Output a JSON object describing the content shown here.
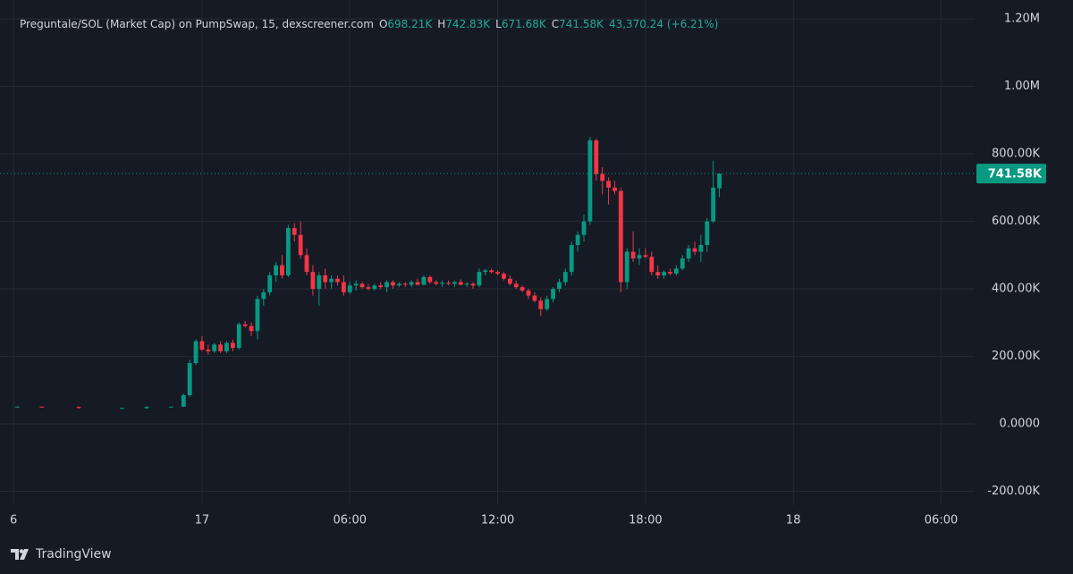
{
  "chart_data": {
    "type": "candlestick",
    "title": "Preguntale/SOL (Market Cap) on PumpSwap, 15, dexscreener.com",
    "ohlc_legend": [
      {
        "key": "O",
        "value": "698.21K"
      },
      {
        "key": "H",
        "value": "742.83K"
      },
      {
        "key": "L",
        "value": "671.68K"
      },
      {
        "key": "C",
        "value": "741.58K"
      }
    ],
    "change": "43,370.24 (+6.21%)",
    "brand": "TradingView",
    "up_color": "#089981",
    "down_color": "#f23645",
    "grid": true,
    "last_price": {
      "value": 741580,
      "label": "741.58K"
    },
    "xlim": [
      15.8,
      55.36
    ],
    "xticks": [
      {
        "value": 16.35,
        "label": "6"
      },
      {
        "value": 24,
        "label": "17"
      },
      {
        "value": 30,
        "label": "06:00"
      },
      {
        "value": 36,
        "label": "12:00"
      },
      {
        "value": 42,
        "label": "18:00"
      },
      {
        "value": 48,
        "label": "18"
      },
      {
        "value": 54,
        "label": "06:00"
      }
    ],
    "ylim": [
      -241000,
      1256000
    ],
    "yticks": [
      {
        "value": 1200000,
        "label": "1.20M"
      },
      {
        "value": 1000000,
        "label": "1.00M"
      },
      {
        "value": 800000,
        "label": "800.00K"
      },
      {
        "value": 600000,
        "label": "600.00K"
      },
      {
        "value": 400000,
        "label": "400.00K"
      },
      {
        "value": 200000,
        "label": "200.00K"
      },
      {
        "value": 0,
        "label": "0.0000"
      },
      {
        "value": -200000,
        "label": "-200.00K"
      }
    ],
    "x": [
      16.5,
      17.5,
      19,
      20.75,
      21.75,
      22.75,
      23.25,
      23.5,
      23.75,
      24,
      24.25,
      24.5,
      24.75,
      25,
      25.25,
      25.5,
      25.75,
      26,
      26.25,
      26.5,
      26.75,
      27,
      27.25,
      27.5,
      27.75,
      28,
      28.25,
      28.5,
      28.75,
      29,
      29.25,
      29.5,
      29.75,
      30,
      30.25,
      30.5,
      30.75,
      31,
      31.25,
      31.5,
      31.75,
      32,
      32.25,
      32.5,
      32.75,
      33,
      33.25,
      33.5,
      33.75,
      34,
      34.25,
      34.5,
      34.75,
      35,
      35.25,
      35.5,
      35.75,
      36,
      36.25,
      36.5,
      36.75,
      37,
      37.25,
      37.5,
      37.75,
      38,
      38.25,
      38.5,
      38.75,
      39,
      39.25,
      39.5,
      39.75,
      40,
      40.25,
      40.5,
      40.75,
      41,
      41.25,
      41.5,
      41.75,
      42,
      42.25,
      42.5,
      42.75,
      43,
      43.25,
      43.5,
      43.75,
      44,
      44.25,
      44.5,
      44.75,
      45
    ],
    "open": [
      50000,
      51000,
      50000,
      47000,
      46000,
      50000,
      51000,
      85000,
      180000,
      245000,
      220000,
      215000,
      235000,
      215000,
      240000,
      225000,
      295000,
      290000,
      275000,
      370000,
      390000,
      440000,
      470000,
      440000,
      580000,
      560000,
      500000,
      450000,
      400000,
      440000,
      420000,
      430000,
      420000,
      390000,
      410000,
      415000,
      405000,
      400000,
      410000,
      405000,
      420000,
      410000,
      415000,
      412000,
      420000,
      412000,
      435000,
      420000,
      415000,
      418000,
      415000,
      420000,
      412000,
      415000,
      410000,
      450000,
      455000,
      450000,
      445000,
      430000,
      415000,
      405000,
      395000,
      380000,
      365000,
      340000,
      370000,
      400000,
      420000,
      450000,
      530000,
      560000,
      600000,
      840000,
      740000,
      720000,
      700000,
      690000,
      420000,
      510000,
      490000,
      500000,
      495000,
      450000,
      440000,
      450000,
      445000,
      460000,
      490000,
      520000,
      510000,
      530000,
      600000,
      698210
    ],
    "high": [
      52000,
      52000,
      51000,
      48000,
      52000,
      51000,
      90000,
      190000,
      250000,
      260000,
      235000,
      240000,
      245000,
      245000,
      250000,
      300000,
      305000,
      300000,
      380000,
      400000,
      450000,
      480000,
      500000,
      590000,
      595000,
      600000,
      520000,
      470000,
      450000,
      460000,
      440000,
      440000,
      440000,
      420000,
      425000,
      420000,
      415000,
      415000,
      420000,
      425000,
      425000,
      420000,
      420000,
      425000,
      430000,
      440000,
      440000,
      425000,
      425000,
      425000,
      425000,
      428000,
      420000,
      420000,
      460000,
      460000,
      460000,
      455000,
      450000,
      440000,
      425000,
      410000,
      400000,
      390000,
      375000,
      380000,
      405000,
      430000,
      460000,
      540000,
      570000,
      620000,
      850000,
      845000,
      760000,
      730000,
      720000,
      700000,
      520000,
      570000,
      520000,
      520000,
      510000,
      470000,
      455000,
      460000,
      470000,
      500000,
      530000,
      540000,
      560000,
      610000,
      780000,
      742830
    ],
    "low": [
      49000,
      50000,
      45000,
      46000,
      45000,
      49000,
      50000,
      80000,
      175000,
      215000,
      205000,
      210000,
      210000,
      210000,
      215000,
      220000,
      285000,
      260000,
      250000,
      350000,
      380000,
      420000,
      430000,
      435000,
      540000,
      490000,
      440000,
      380000,
      350000,
      400000,
      400000,
      410000,
      380000,
      385000,
      395000,
      400000,
      395000,
      395000,
      400000,
      390000,
      400000,
      405000,
      405000,
      405000,
      410000,
      410000,
      415000,
      410000,
      405000,
      410000,
      405000,
      410000,
      405000,
      400000,
      405000,
      440000,
      445000,
      440000,
      425000,
      410000,
      400000,
      390000,
      370000,
      360000,
      320000,
      335000,
      360000,
      390000,
      410000,
      440000,
      510000,
      540000,
      590000,
      720000,
      680000,
      650000,
      680000,
      390000,
      400000,
      480000,
      470000,
      490000,
      440000,
      430000,
      430000,
      440000,
      440000,
      455000,
      480000,
      500000,
      480000,
      510000,
      595000,
      671680
    ],
    "close": [
      51000,
      50000,
      47000,
      47000,
      50000,
      51000,
      85000,
      180000,
      245000,
      220000,
      215000,
      235000,
      215000,
      240000,
      225000,
      295000,
      290000,
      275000,
      370000,
      390000,
      440000,
      470000,
      440000,
      580000,
      560000,
      500000,
      450000,
      400000,
      440000,
      420000,
      430000,
      420000,
      390000,
      410000,
      415000,
      405000,
      400000,
      410000,
      405000,
      420000,
      410000,
      415000,
      412000,
      420000,
      412000,
      435000,
      420000,
      415000,
      418000,
      415000,
      420000,
      412000,
      415000,
      410000,
      450000,
      455000,
      450000,
      445000,
      430000,
      415000,
      405000,
      395000,
      380000,
      365000,
      340000,
      370000,
      400000,
      420000,
      450000,
      530000,
      560000,
      600000,
      840000,
      740000,
      720000,
      700000,
      690000,
      420000,
      510000,
      490000,
      500000,
      495000,
      450000,
      440000,
      450000,
      445000,
      460000,
      490000,
      520000,
      510000,
      530000,
      600000,
      700000,
      741580
    ]
  }
}
